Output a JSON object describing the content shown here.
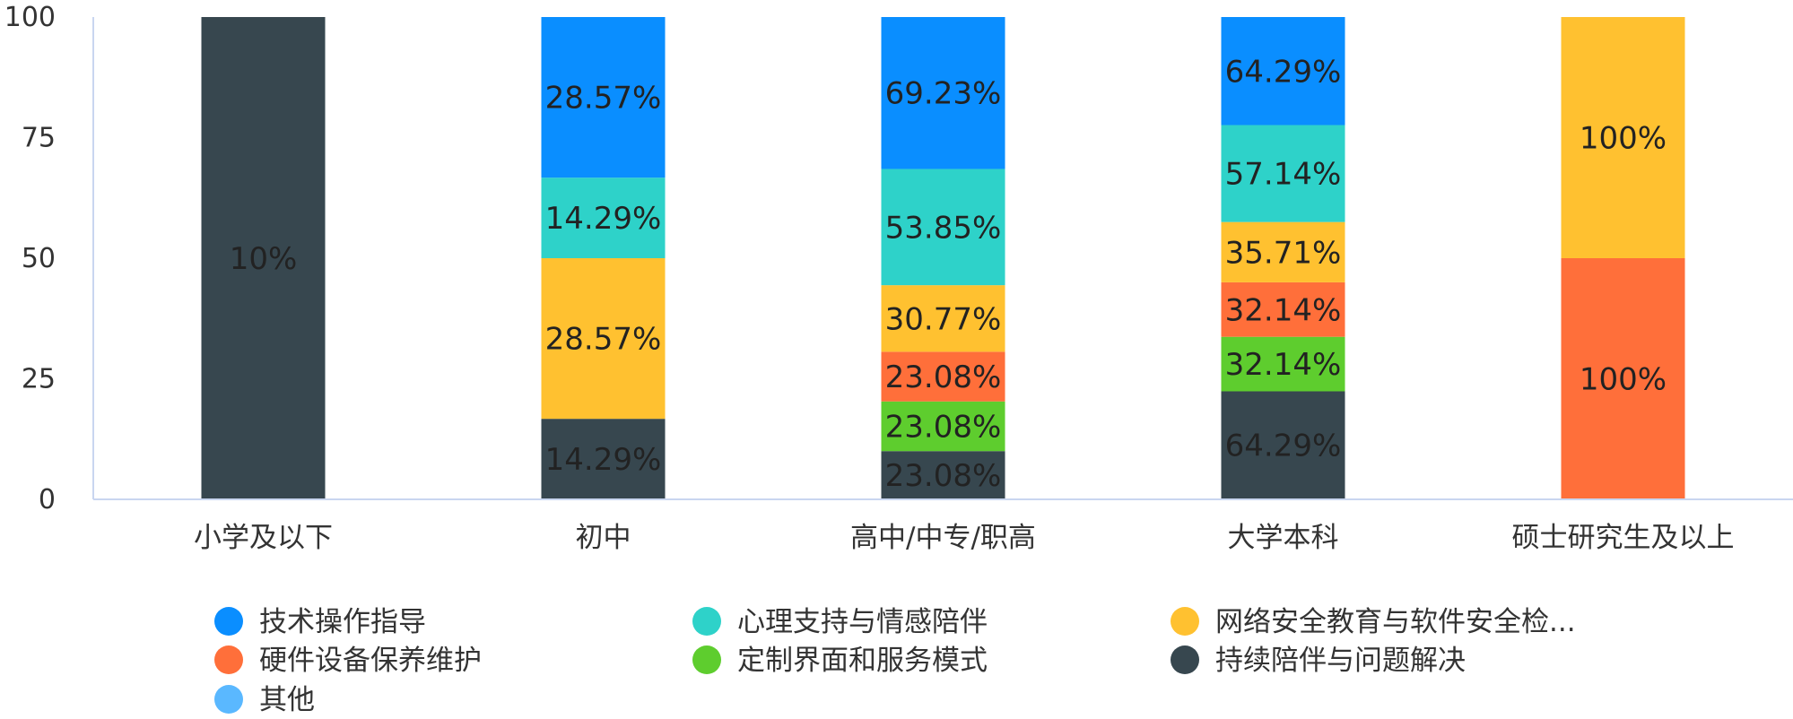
{
  "chart_data": {
    "type": "bar",
    "stacked": true,
    "title": "",
    "xlabel": "",
    "ylabel": "",
    "ylim": [
      0,
      100
    ],
    "yticks": [
      0,
      25,
      50,
      75,
      100
    ],
    "grid": false,
    "legend_position": "bottom",
    "categories": [
      "小学及以下",
      "初中",
      "高中/中专/职高",
      "大学本科",
      "硕士研究生及以上"
    ],
    "series": [
      {
        "name": "持续陪伴与问题解决",
        "color": "#37474F",
        "values": [
          100,
          16.7,
          10,
          22.4,
          0
        ],
        "labels": [
          "10%",
          "14.29%",
          "23.08%",
          "64.29%",
          ""
        ]
      },
      {
        "name": "定制界面和服务模式",
        "color": "#5ECD2E",
        "values": [
          0,
          0,
          10.3,
          11.3,
          0
        ],
        "labels": [
          "",
          "",
          "23.08%",
          "32.14%",
          ""
        ]
      },
      {
        "name": "硬件设备保养维护",
        "color": "#FF6F3A",
        "values": [
          0,
          0,
          10.3,
          11.3,
          50
        ],
        "labels": [
          "",
          "",
          "23.08%",
          "32.14%",
          "100%"
        ]
      },
      {
        "name": "网络安全教育与软件安全检...",
        "color": "#FFC130",
        "values": [
          0,
          33.3,
          13.8,
          12.5,
          50
        ],
        "labels": [
          "",
          "28.57%",
          "30.77%",
          "35.71%",
          "100%"
        ]
      },
      {
        "name": "心理支持与情感陪伴",
        "color": "#2ED2C9",
        "values": [
          0,
          16.7,
          24.1,
          20.1,
          0
        ],
        "labels": [
          "",
          "14.29%",
          "53.85%",
          "57.14%",
          ""
        ]
      },
      {
        "name": "技术操作指导",
        "color": "#0A8EFF",
        "values": [
          0,
          33.3,
          31.5,
          22.4,
          0
        ],
        "labels": [
          "",
          "28.57%",
          "69.23%",
          "64.29%",
          ""
        ]
      }
    ],
    "legend": [
      {
        "name": "技术操作指导",
        "color": "#0A8EFF"
      },
      {
        "name": "心理支持与情感陪伴",
        "color": "#2ED2C9"
      },
      {
        "name": "网络安全教育与软件安全检...",
        "color": "#FFC130"
      },
      {
        "name": "硬件设备保养维护",
        "color": "#FF6F3A"
      },
      {
        "name": "定制界面和服务模式",
        "color": "#5ECD2E"
      },
      {
        "name": "持续陪伴与问题解决",
        "color": "#37474F"
      },
      {
        "name": "其他",
        "color": "#5AB8FF"
      }
    ],
    "colors": {
      "axis": "#C9D6F0",
      "text": "#333333"
    }
  }
}
